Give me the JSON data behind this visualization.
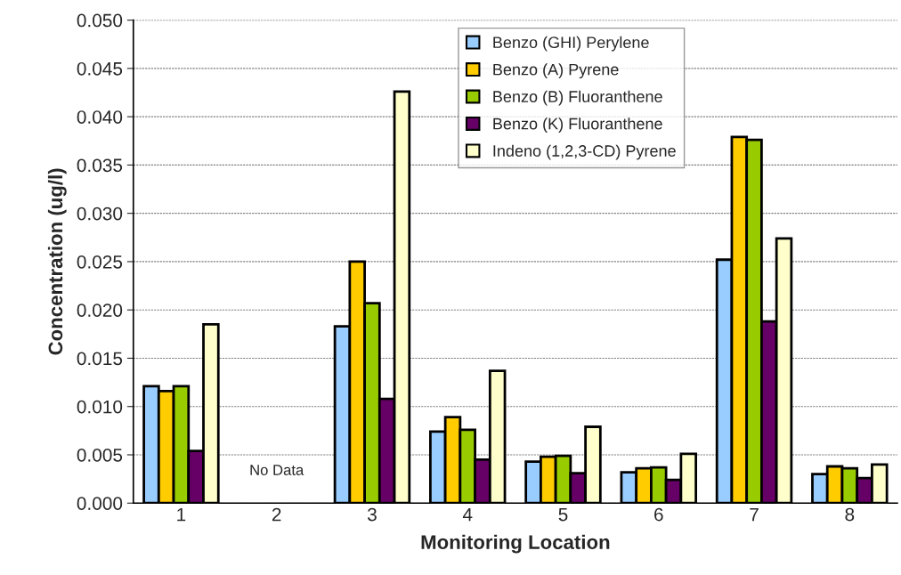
{
  "chart_data": {
    "type": "bar",
    "xlabel": "Monitoring Location",
    "ylabel": "Concentration (ug/l)",
    "categories": [
      "1",
      "2",
      "3",
      "4",
      "5",
      "6",
      "7",
      "8"
    ],
    "series": [
      {
        "name": "Benzo (GHI) Perylene",
        "color": "#99ccff",
        "values": [
          0.0121,
          null,
          0.0183,
          0.0074,
          0.0043,
          0.0032,
          0.0252,
          0.003
        ]
      },
      {
        "name": "Benzo (A) Pyrene",
        "color": "#ffcc00",
        "values": [
          0.0116,
          null,
          0.025,
          0.0089,
          0.0048,
          0.0036,
          0.0379,
          0.0038
        ]
      },
      {
        "name": "Benzo (B) Fluoranthene",
        "color": "#99cc00",
        "values": [
          0.0121,
          null,
          0.0207,
          0.0076,
          0.0049,
          0.0037,
          0.0376,
          0.0036
        ]
      },
      {
        "name": "Benzo (K) Fluoranthene",
        "color": "#660066",
        "values": [
          0.0054,
          null,
          0.0108,
          0.0045,
          0.0031,
          0.0024,
          0.0188,
          0.0026
        ]
      },
      {
        "name": "Indeno (1,2,3-CD) Pyrene",
        "color": "#ffffcc",
        "values": [
          0.0185,
          null,
          0.0426,
          0.0137,
          0.0079,
          0.0051,
          0.0274,
          0.004
        ]
      }
    ],
    "ylim": [
      0,
      0.05
    ],
    "yticks": [
      {
        "value": 0,
        "label": "0.000"
      },
      {
        "value": 0.005,
        "label": "0.005"
      },
      {
        "value": 0.01,
        "label": "0.010"
      },
      {
        "value": 0.015,
        "label": "0.015"
      },
      {
        "value": 0.02,
        "label": "0.020"
      },
      {
        "value": 0.025,
        "label": "0.025"
      },
      {
        "value": 0.03,
        "label": "0.030"
      },
      {
        "value": 0.035,
        "label": "0.035"
      },
      {
        "value": 0.04,
        "label": "0.040"
      },
      {
        "value": 0.045,
        "label": "0.045"
      },
      {
        "value": 0.05,
        "label": "0.050"
      }
    ],
    "annotations": [
      "No Data"
    ],
    "grid": "y",
    "legend": "top"
  }
}
